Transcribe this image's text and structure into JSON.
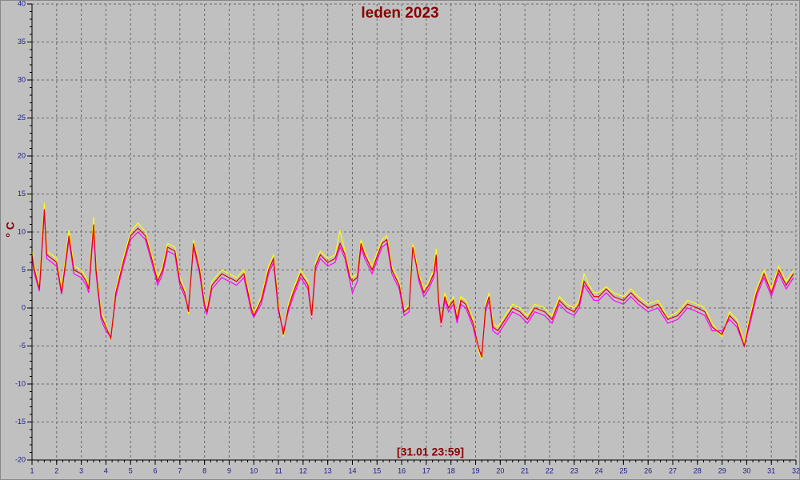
{
  "chart_data": {
    "type": "line",
    "title": "leden 2023",
    "y_label": "° C",
    "annotation": "[31.01 23:59]",
    "x": [
      1,
      1.1,
      1.3,
      1.5,
      1.6,
      1.8,
      2.0,
      2.2,
      2.5,
      2.7,
      3.0,
      3.2,
      3.3,
      3.5,
      3.6,
      3.8,
      4.0,
      4.2,
      4.4,
      4.7,
      5.0,
      5.3,
      5.6,
      5.9,
      6.1,
      6.3,
      6.5,
      6.8,
      7.0,
      7.2,
      7.35,
      7.55,
      7.8,
      8.0,
      8.1,
      8.3,
      8.7,
      9.0,
      9.3,
      9.6,
      9.9,
      10.0,
      10.3,
      10.6,
      10.8,
      11.0,
      11.2,
      11.4,
      11.6,
      11.9,
      12.2,
      12.35,
      12.5,
      12.7,
      13.0,
      13.3,
      13.5,
      13.7,
      13.9,
      14.0,
      14.2,
      14.35,
      14.5,
      14.8,
      15.2,
      15.4,
      15.6,
      15.9,
      16.1,
      16.3,
      16.45,
      16.7,
      16.9,
      17.1,
      17.3,
      17.4,
      17.5,
      17.6,
      17.75,
      17.9,
      18.1,
      18.25,
      18.4,
      18.6,
      18.9,
      19.1,
      19.25,
      19.4,
      19.55,
      19.7,
      19.9,
      20.2,
      20.5,
      20.8,
      21.1,
      21.4,
      21.8,
      22.1,
      22.4,
      22.7,
      23.0,
      23.2,
      23.4,
      23.6,
      23.8,
      24.0,
      24.3,
      24.6,
      25.0,
      25.3,
      25.6,
      26.0,
      26.4,
      26.8,
      27.2,
      27.6,
      28.0,
      28.3,
      28.6,
      29.0,
      29.3,
      29.6,
      29.9,
      30.1,
      30.4,
      30.7,
      31.0,
      31.3,
      31.6,
      31.9
    ],
    "series": [
      {
        "color": "#ff00ff",
        "values": [
          6.5,
          4.5,
          2.2,
          12.5,
          6.5,
          6,
          5.5,
          1.8,
          9,
          4.5,
          4,
          3,
          2,
          10.5,
          4.5,
          -1.5,
          -3,
          -3.8,
          1.5,
          5.5,
          9,
          10,
          9,
          5.5,
          3,
          4.5,
          7.5,
          7,
          3,
          1.5,
          0,
          8,
          4.5,
          0,
          -0.8,
          2.5,
          4,
          3.5,
          3,
          4,
          -0.5,
          -1.2,
          0.5,
          4.5,
          6,
          -0.5,
          -3,
          -0.5,
          1.5,
          4,
          2.5,
          -1.5,
          5,
          6.5,
          5.5,
          6,
          8,
          6.5,
          3.5,
          2,
          3.5,
          8,
          6.5,
          4.5,
          8,
          8.5,
          4.5,
          2.5,
          -1,
          -0.5,
          8.5,
          3.5,
          1.5,
          2.5,
          4,
          6.5,
          0.5,
          -2.5,
          1,
          -0.5,
          0.5,
          -2,
          0.5,
          0,
          -2.5,
          -5.5,
          -6,
          -0.5,
          1,
          -3,
          -3.5,
          -2,
          -0.5,
          -1,
          -2,
          -0.5,
          -1,
          -2,
          0.5,
          -0.5,
          -1,
          0,
          3,
          2,
          1,
          1,
          2,
          1,
          0.5,
          1.5,
          0.5,
          -0.5,
          0,
          -2,
          -1.5,
          0,
          -0.5,
          -1,
          -3,
          -3,
          -1.5,
          -2.5,
          -5,
          -2.5,
          1.5,
          4,
          1.5,
          4.5,
          2.5,
          4
        ]
      },
      {
        "color": "#ffff00",
        "values": [
          7.5,
          5.5,
          3,
          13.8,
          7.5,
          7,
          6.5,
          2.5,
          10.2,
          5.5,
          5,
          4,
          3,
          12,
          5.5,
          -0.5,
          -2,
          -4.2,
          2.5,
          6.5,
          10,
          11.2,
          10,
          6.5,
          4,
          5.5,
          8.5,
          8,
          4,
          2.5,
          -0.8,
          9,
          5.5,
          1,
          -0.3,
          3.5,
          5,
          4.5,
          4,
          5,
          0.5,
          -0.8,
          1.5,
          5.5,
          7,
          0.5,
          -3.8,
          0.5,
          2.5,
          5,
          3.5,
          -1.3,
          6,
          7.5,
          6.5,
          7,
          10.2,
          7.5,
          4.5,
          4,
          4.5,
          9,
          7.5,
          5.5,
          9,
          9.5,
          5.5,
          3.5,
          -0.3,
          0.5,
          8.5,
          4.5,
          2.5,
          3.5,
          5,
          7.8,
          1.5,
          -2.3,
          2,
          0.5,
          1.5,
          -1.2,
          1.5,
          1,
          -1.5,
          -5.5,
          -6.8,
          0.5,
          2,
          -2,
          -2.5,
          -1,
          0.5,
          0,
          -1,
          0.5,
          0,
          -1,
          1.5,
          0.5,
          0,
          1,
          4.5,
          3,
          2,
          2,
          2.8,
          2,
          1.5,
          2.5,
          1.5,
          0.5,
          1,
          -1.2,
          -0.5,
          1,
          0.5,
          0,
          -2,
          -3.8,
          -0.5,
          -1.5,
          -4.5,
          -1.5,
          2.5,
          5,
          2.5,
          5.5,
          3.5,
          5
        ]
      },
      {
        "color": "#e00000",
        "values": [
          7,
          5,
          2.5,
          13,
          7,
          6.5,
          6,
          2,
          9.5,
          5,
          4.5,
          3.5,
          2.5,
          11,
          5,
          -1,
          -2.5,
          -4,
          2,
          6,
          9.5,
          10.5,
          9.5,
          6,
          3.5,
          5,
          8,
          7.5,
          3.5,
          2,
          -0.5,
          8.5,
          5,
          0.5,
          -0.5,
          3,
          4.5,
          4,
          3.5,
          4.5,
          0,
          -1,
          1,
          5,
          6.5,
          0,
          -3.5,
          0,
          2,
          4.5,
          3,
          -1,
          5.5,
          7,
          6,
          6.5,
          8.5,
          7,
          4,
          3.5,
          4,
          8.5,
          7,
          5,
          8.5,
          9,
          5,
          3,
          -0.5,
          0,
          8,
          4,
          2,
          3,
          4.5,
          7,
          1,
          -2,
          1.5,
          0,
          1,
          -1.5,
          1,
          0.5,
          -2,
          -5,
          -6.5,
          0,
          1.5,
          -2.5,
          -3,
          -1.5,
          0,
          -0.5,
          -1.5,
          0,
          -0.5,
          -1.5,
          1,
          0,
          -0.5,
          0.5,
          3.5,
          2.5,
          1.5,
          1.5,
          2.5,
          1.5,
          1,
          2,
          1,
          0,
          0.5,
          -1.5,
          -1,
          0.5,
          0,
          -0.5,
          -2.5,
          -3.5,
          -1,
          -2,
          -5,
          -2,
          2,
          4.5,
          2,
          5,
          3,
          4.5
        ]
      }
    ],
    "xlim": [
      1,
      32
    ],
    "xticks": [
      1,
      2,
      3,
      4,
      5,
      6,
      7,
      8,
      9,
      10,
      11,
      12,
      13,
      14,
      15,
      16,
      17,
      18,
      19,
      20,
      21,
      22,
      23,
      24,
      25,
      26,
      27,
      28,
      29,
      30,
      31,
      32
    ],
    "ylim": [
      -20,
      40
    ],
    "yticks": [
      -20,
      -15,
      -10,
      -5,
      0,
      5,
      10,
      15,
      20,
      25,
      30,
      35,
      40
    ],
    "grid": true
  }
}
